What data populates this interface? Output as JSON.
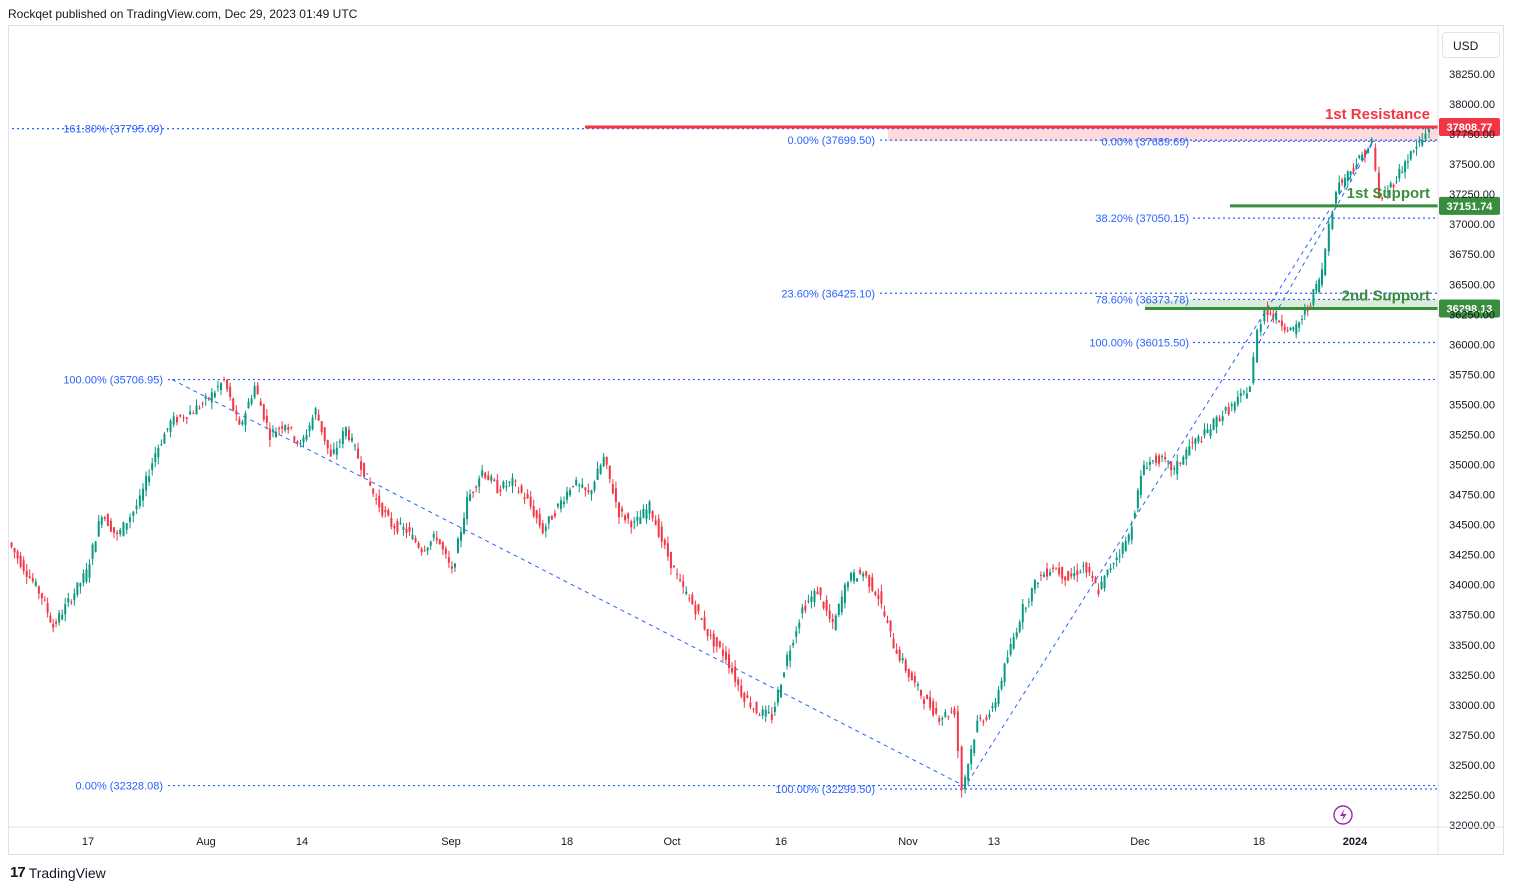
{
  "header": {
    "published": "Rockqet published on TradingView.com, Dec 29, 2023 01:49 UTC"
  },
  "currency": "USD",
  "footer": {
    "brand": "TradingView",
    "mark": "17"
  },
  "chart_data": {
    "type": "candlestick",
    "currency": "USD",
    "y_ticks": [
      "38250.00",
      "38000.00",
      "37750.00",
      "37500.00",
      "37250.00",
      "37000.00",
      "36750.00",
      "36500.00",
      "36250.00",
      "36000.00",
      "35750.00",
      "35500.00",
      "35250.00",
      "35000.00",
      "34750.00",
      "34500.00",
      "34250.00",
      "34000.00",
      "33750.00",
      "33500.00",
      "33250.00",
      "33000.00",
      "32750.00",
      "32500.00",
      "32250.00",
      "32000.00"
    ],
    "x_ticks": [
      "17",
      "Aug",
      "14",
      "Sep",
      "18",
      "Oct",
      "16",
      "Nov",
      "13",
      "Dec",
      "18",
      "2024"
    ],
    "ylim": [
      32000,
      38350
    ],
    "levels": [
      {
        "title": "1st Resistance",
        "price": 37808.77,
        "tag": "37808.77",
        "color": "#f23645"
      },
      {
        "title": "1st Support",
        "price": 37151.74,
        "tag": "37151.74",
        "color": "#388e3c"
      },
      {
        "title": "2nd Support",
        "price": 36298.13,
        "tag": "36298.13",
        "color": "#388e3c"
      }
    ],
    "zones": [
      {
        "from": 37690,
        "to": 37808.77,
        "color": "#f23645"
      },
      {
        "from": 36298.13,
        "to": 36373.78,
        "color": "#388e3c"
      }
    ],
    "fib_levels": [
      {
        "label": "161.80% (37795.09)",
        "price": 37795.09
      },
      {
        "label": "0.00% (37699.50)",
        "price": 37699.5
      },
      {
        "label": "0.00% (37689.69)",
        "price": 37689.69
      },
      {
        "label": "38.20% (37050.15)",
        "price": 37050.15
      },
      {
        "label": "23.60% (36425.10)",
        "price": 36425.1
      },
      {
        "label": "78.60% (36373.78)",
        "price": 36373.78
      },
      {
        "label": "100.00% (36015.50)",
        "price": 36015.5
      },
      {
        "label": "100.00% (35706.95)",
        "price": 35706.95
      },
      {
        "label": "0.00% (32328.08)",
        "price": 32328.08
      },
      {
        "label": "100.00% (32299.50)",
        "price": 32299.5
      }
    ],
    "path_points": [
      [
        "Jul 10",
        34350
      ],
      [
        "Jul 13",
        33900
      ],
      [
        "Jul 14",
        33650
      ],
      [
        "Jul 17",
        34100
      ],
      [
        "Jul 19",
        34600
      ],
      [
        "Jul 21",
        34400
      ],
      [
        "Jul 24",
        34700
      ],
      [
        "Jul 26",
        35100
      ],
      [
        "Jul 28",
        35350
      ],
      [
        "Jul 31",
        35450
      ],
      [
        "Aug 2",
        35550
      ],
      [
        "Aug 4",
        35700
      ],
      [
        "Aug 6",
        35300
      ],
      [
        "Aug 8",
        35650
      ],
      [
        "Aug 10",
        35250
      ],
      [
        "Aug 12",
        35350
      ],
      [
        "Aug 14",
        35150
      ],
      [
        "Aug 16",
        35450
      ],
      [
        "Aug 18",
        35050
      ],
      [
        "Aug 20",
        35300
      ],
      [
        "Aug 22",
        35000
      ],
      [
        "Aug 24",
        34700
      ],
      [
        "Aug 26",
        34500
      ],
      [
        "Aug 28",
        34450
      ],
      [
        "Aug 30",
        34300
      ],
      [
        "Sep 1",
        34400
      ],
      [
        "Sep 3",
        34100
      ],
      [
        "Sep 5",
        34700
      ],
      [
        "Sep 7",
        34950
      ],
      [
        "Sep 9",
        34800
      ],
      [
        "Sep 11",
        34850
      ],
      [
        "Sep 13",
        34700
      ],
      [
        "Sep 15",
        34450
      ],
      [
        "Sep 17",
        34650
      ],
      [
        "Sep 19",
        34850
      ],
      [
        "Sep 21",
        34750
      ],
      [
        "Sep 23",
        35050
      ],
      [
        "Sep 25",
        34600
      ],
      [
        "Sep 27",
        34500
      ],
      [
        "Sep 29",
        34650
      ],
      [
        "Oct 1",
        34300
      ],
      [
        "Oct 3",
        34000
      ],
      [
        "Oct 5",
        33800
      ],
      [
        "Oct 7",
        33550
      ],
      [
        "Oct 9",
        33400
      ],
      [
        "Oct 11",
        33100
      ],
      [
        "Oct 13",
        32950
      ],
      [
        "Oct 15",
        32900
      ],
      [
        "Oct 17",
        33400
      ],
      [
        "Oct 19",
        33800
      ],
      [
        "Oct 21",
        33950
      ],
      [
        "Oct 23",
        33650
      ],
      [
        "Oct 25",
        34050
      ],
      [
        "Oct 27",
        34100
      ],
      [
        "Oct 29",
        33900
      ],
      [
        "Oct 31",
        33500
      ],
      [
        "Nov 2",
        33250
      ],
      [
        "Nov 4",
        33050
      ],
      [
        "Nov 6",
        32900
      ],
      [
        "Nov 8",
        32950
      ],
      [
        "Nov 9",
        32300
      ],
      [
        "Nov 11",
        32850
      ],
      [
        "Nov 13",
        32950
      ],
      [
        "Nov 15",
        33400
      ],
      [
        "Nov 17",
        33800
      ],
      [
        "Nov 19",
        34050
      ],
      [
        "Nov 21",
        34150
      ],
      [
        "Nov 23",
        34050
      ],
      [
        "Nov 25",
        34150
      ],
      [
        "Nov 27",
        33950
      ],
      [
        "Nov 29",
        34200
      ],
      [
        "Dec 1",
        34400
      ],
      [
        "Dec 3",
        35000
      ],
      [
        "Dec 5",
        35050
      ],
      [
        "Dec 7",
        34950
      ],
      [
        "Dec 9",
        35150
      ],
      [
        "Dec 11",
        35250
      ],
      [
        "Dec 13",
        35400
      ],
      [
        "Dec 15",
        35500
      ],
      [
        "Dec 17",
        35650
      ],
      [
        "Dec 18",
        36100
      ],
      [
        "Dec 19",
        36300
      ],
      [
        "Dec 21",
        36200
      ],
      [
        "Dec 23",
        36100
      ],
      [
        "Dec 25",
        36300
      ],
      [
        "Dec 27",
        36600
      ],
      [
        "Dec 28",
        37000
      ],
      [
        "Dec 29",
        37300
      ],
      [
        "Dec 31",
        37450
      ],
      [
        "Jan 2",
        37600
      ],
      [
        "Jan 3",
        37680
      ],
      [
        "Jan 4",
        37200
      ],
      [
        "Jan 6",
        37350
      ],
      [
        "Jan 8",
        37550
      ],
      [
        "Jan 10",
        37700
      ],
      [
        "Jan 11",
        37800
      ]
    ]
  }
}
